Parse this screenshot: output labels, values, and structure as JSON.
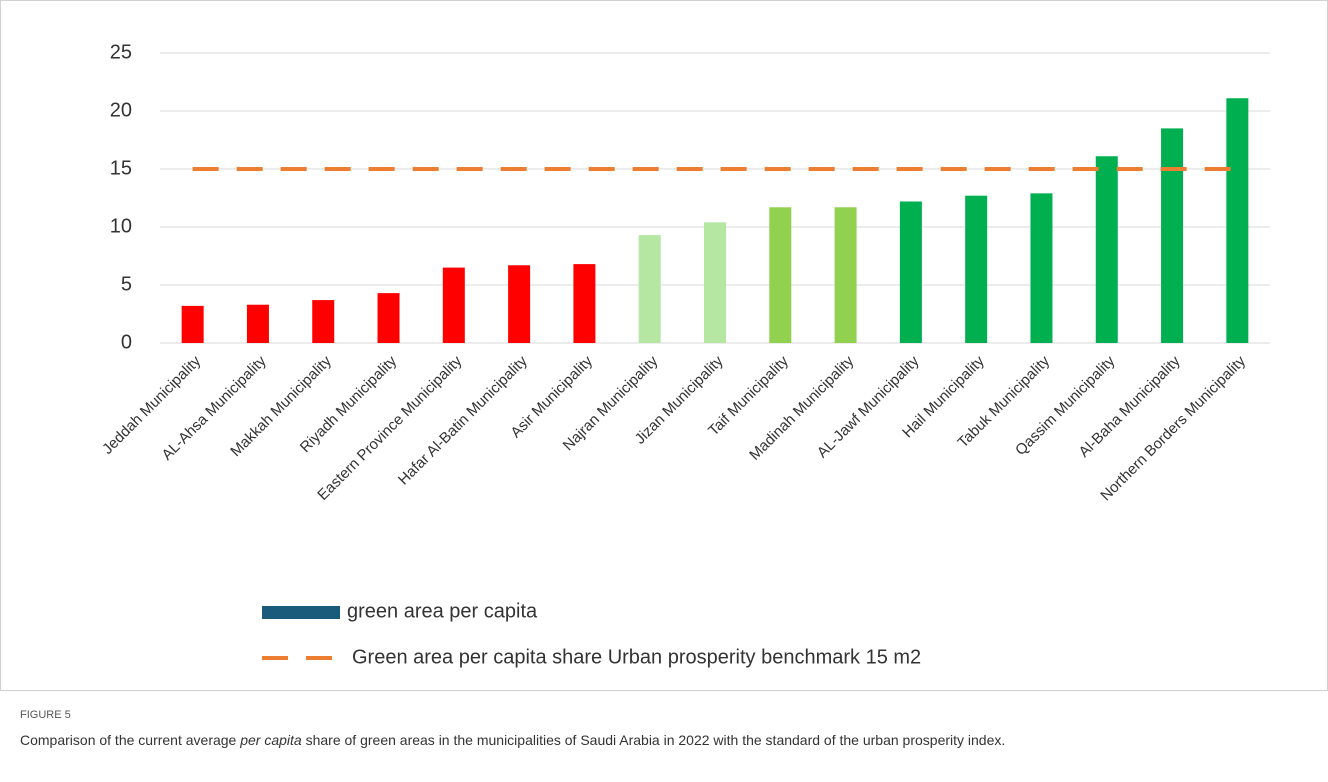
{
  "chart_data": {
    "type": "bar",
    "categories": [
      "Jeddah Municipality",
      "AL-Ahsa Municipality",
      "Makkah Municipality",
      "Riyadh Municipality",
      "Eastern Province Municipality",
      "Hafar Al-Batin Municipality",
      "Asir Municipality",
      "Najran Municipality",
      "Jizan Municipality",
      "Taif Municipality",
      "Madinah Municipality",
      "AL-Jawf Municipality",
      "Hail Municipality",
      "Tabuk Municipality",
      "Qassim Municipality",
      "Al-Baha Municipality",
      "Northern Borders Municipality"
    ],
    "series": [
      {
        "name": "green area per capita",
        "color": "#1a5a7a",
        "values": [
          3.2,
          3.3,
          3.7,
          4.3,
          6.5,
          6.7,
          6.8,
          9.3,
          10.4,
          11.7,
          11.7,
          12.2,
          12.7,
          12.9,
          16.1,
          18.5,
          21.1
        ],
        "colors": [
          "#ff0000",
          "#ff0000",
          "#ff0000",
          "#ff0000",
          "#ff0000",
          "#ff0000",
          "#ff0000",
          "#b5e6a2",
          "#b5e6a2",
          "#92d050",
          "#92d050",
          "#00b050",
          "#00b050",
          "#00b050",
          "#00b050",
          "#00b050",
          "#00b050"
        ]
      },
      {
        "name": "Green area per capita share Urban prosperity benchmark 15 m2",
        "type": "line",
        "color": "#ed7d31",
        "values": [
          15,
          15,
          15,
          15,
          15,
          15,
          15,
          15,
          15,
          15,
          15,
          15,
          15,
          15,
          15,
          15,
          15
        ]
      }
    ],
    "ylim": [
      0,
      25
    ],
    "yticks": [
      0,
      5,
      10,
      15,
      20,
      25
    ],
    "grid": true
  },
  "figure": {
    "label": "FIGURE 5",
    "caption": [
      "Comparison of the current average ",
      "per capita",
      " share of green areas in the municipalities of Saudi Arabia in 2022 with the standard of the urban prosperity index."
    ]
  }
}
